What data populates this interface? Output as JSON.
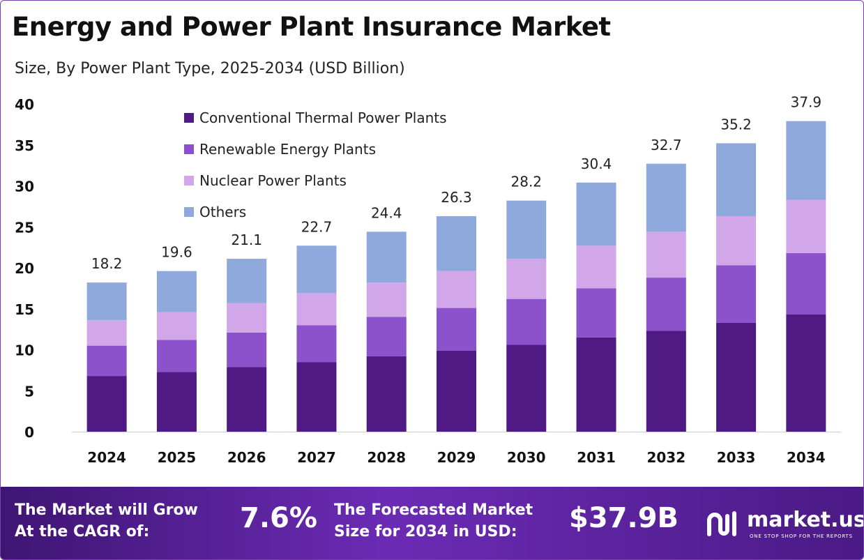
{
  "title": "Energy and Power Plant Insurance Market",
  "subtitle": "Size, By Power Plant Type, 2025-2034 (USD Billion)",
  "chart_data": {
    "type": "bar",
    "stacked": true,
    "categories": [
      "2024",
      "2025",
      "2026",
      "2027",
      "2028",
      "2029",
      "2030",
      "2031",
      "2032",
      "2033",
      "2034"
    ],
    "series": [
      {
        "name": "Conventional Thermal Power Plants",
        "color": "#4f1a84",
        "values": [
          6.8,
          7.3,
          7.9,
          8.5,
          9.2,
          9.9,
          10.6,
          11.5,
          12.3,
          13.3,
          14.3
        ]
      },
      {
        "name": "Renewable Energy Plants",
        "color": "#8b52cc",
        "values": [
          3.7,
          3.9,
          4.2,
          4.5,
          4.8,
          5.2,
          5.6,
          6.0,
          6.5,
          7.0,
          7.5
        ]
      },
      {
        "name": "Nuclear Power Plants",
        "color": "#d2a7ea",
        "values": [
          3.1,
          3.4,
          3.6,
          3.9,
          4.2,
          4.5,
          4.9,
          5.2,
          5.6,
          6.0,
          6.5
        ]
      },
      {
        "name": "Others",
        "color": "#8fa9dc",
        "values": [
          4.6,
          5.0,
          5.4,
          5.8,
          6.2,
          6.7,
          7.1,
          7.7,
          8.3,
          8.9,
          9.6
        ]
      }
    ],
    "totals": [
      "18.2",
      "19.6",
      "21.1",
      "22.7",
      "24.4",
      "26.3",
      "28.2",
      "30.4",
      "32.7",
      "35.2",
      "37.9"
    ],
    "ylim": [
      0,
      40
    ],
    "yticks": [
      "0",
      "5",
      "10",
      "15",
      "20",
      "25",
      "30",
      "35",
      "40"
    ],
    "grid": false,
    "legend_position": "top-left"
  },
  "banner": {
    "cagr_label_line1": "The Market will Grow",
    "cagr_label_line2": "At the CAGR of:",
    "cagr_value": "7.6%",
    "forecast_label_line1": "The Forecasted Market",
    "forecast_label_line2": "Size for 2034 in USD:",
    "forecast_value": "$37.9B",
    "logo_name": "market.us",
    "logo_tagline": "ONE STOP SHOP FOR THE REPORTS"
  }
}
